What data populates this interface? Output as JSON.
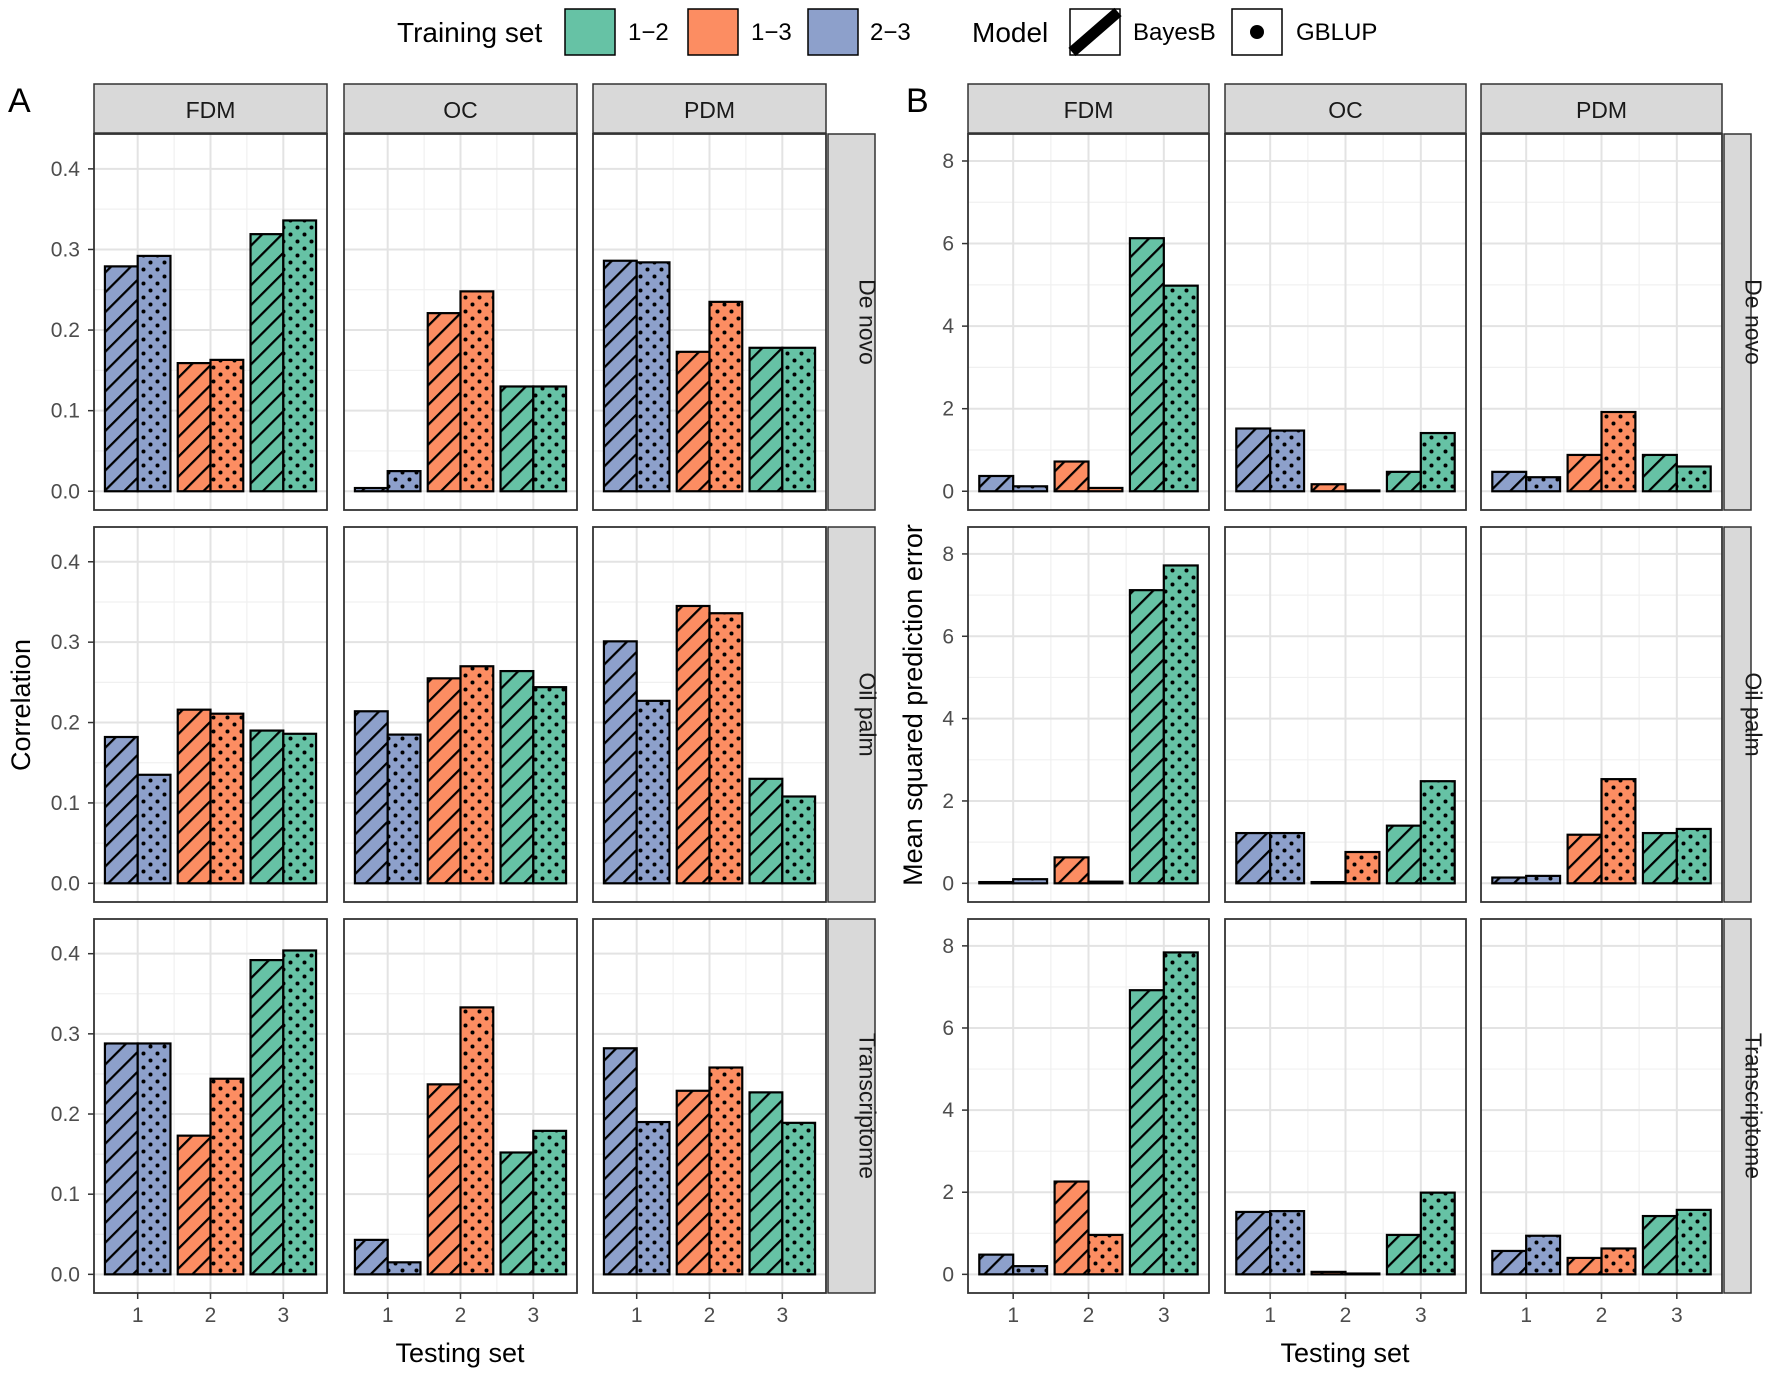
{
  "legend": {
    "training_title": "Training set",
    "training_items": [
      {
        "label": "1−2",
        "color": "#66C2A5"
      },
      {
        "label": "1−3",
        "color": "#FC8D62"
      },
      {
        "label": "2−3",
        "color": "#8DA0CB"
      }
    ],
    "model_title": "Model",
    "model_items": [
      {
        "label": "BayesB",
        "pattern": "stripe"
      },
      {
        "label": "GBLUP",
        "pattern": "dots"
      }
    ]
  },
  "chart_data": [
    {
      "type": "bar",
      "panel_label": "A",
      "xlabel": "Testing set",
      "ylabel": "Correlation",
      "ylim": [
        0,
        0.42
      ],
      "yticks": [
        0.0,
        0.1,
        0.2,
        0.3,
        0.4
      ],
      "ytick_labels": [
        "0.0",
        "0.1",
        "0.2",
        "0.3",
        "0.4"
      ],
      "columns": [
        "FDM",
        "OC",
        "PDM"
      ],
      "rows": [
        "De novo",
        "Oil palm",
        "Transcriptome"
      ],
      "categories": [
        "1",
        "2",
        "3"
      ],
      "category_training_set": [
        "2−3",
        "1−3",
        "1−2"
      ],
      "models": [
        "BayesB",
        "GBLUP"
      ],
      "values": {
        "De novo": {
          "FDM": [
            [
              0.279,
              0.292
            ],
            [
              0.159,
              0.163
            ],
            [
              0.319,
              0.336
            ]
          ],
          "OC": [
            [
              0.004,
              0.025
            ],
            [
              0.221,
              0.248
            ],
            [
              0.13,
              0.13
            ]
          ],
          "PDM": [
            [
              0.286,
              0.284
            ],
            [
              0.173,
              0.235
            ],
            [
              0.178,
              0.178
            ]
          ]
        },
        "Oil palm": {
          "FDM": [
            [
              0.182,
              0.135
            ],
            [
              0.216,
              0.211
            ],
            [
              0.19,
              0.186
            ]
          ],
          "OC": [
            [
              0.214,
              0.185
            ],
            [
              0.255,
              0.27
            ],
            [
              0.264,
              0.244
            ]
          ],
          "PDM": [
            [
              0.301,
              0.227
            ],
            [
              0.345,
              0.336
            ],
            [
              0.13,
              0.108
            ]
          ]
        },
        "Transcriptome": {
          "FDM": [
            [
              0.288,
              0.288
            ],
            [
              0.173,
              0.244
            ],
            [
              0.392,
              0.404
            ]
          ],
          "OC": [
            [
              0.043,
              0.015
            ],
            [
              0.237,
              0.333
            ],
            [
              0.152,
              0.179
            ]
          ],
          "PDM": [
            [
              0.282,
              0.19
            ],
            [
              0.229,
              0.258
            ],
            [
              0.227,
              0.189
            ]
          ]
        }
      }
    },
    {
      "type": "bar",
      "panel_label": "B",
      "xlabel": "Testing set",
      "ylabel": "Mean squared prediction error",
      "ylim": [
        0,
        8.2
      ],
      "yticks": [
        0,
        2,
        4,
        6,
        8
      ],
      "ytick_labels": [
        "0",
        "2",
        "4",
        "6",
        "8"
      ],
      "columns": [
        "FDM",
        "OC",
        "PDM"
      ],
      "rows": [
        "De novo",
        "Oil palm",
        "Transcriptome"
      ],
      "categories": [
        "1",
        "2",
        "3"
      ],
      "category_training_set": [
        "2−3",
        "1−3",
        "1−2"
      ],
      "models": [
        "BayesB",
        "GBLUP"
      ],
      "values": {
        "De novo": {
          "FDM": [
            [
              0.37,
              0.12
            ],
            [
              0.72,
              0.08
            ],
            [
              6.13,
              4.98
            ]
          ],
          "OC": [
            [
              1.52,
              1.47
            ],
            [
              0.17,
              0.02
            ],
            [
              0.47,
              1.41
            ]
          ],
          "PDM": [
            [
              0.47,
              0.34
            ],
            [
              0.88,
              1.92
            ],
            [
              0.88,
              0.6
            ]
          ]
        },
        "Oil palm": {
          "FDM": [
            [
              0.03,
              0.1
            ],
            [
              0.63,
              0.04
            ],
            [
              7.12,
              7.72
            ]
          ],
          "OC": [
            [
              1.22,
              1.22
            ],
            [
              0.03,
              0.76
            ],
            [
              1.4,
              2.48
            ]
          ],
          "PDM": [
            [
              0.14,
              0.18
            ],
            [
              1.18,
              2.53
            ],
            [
              1.22,
              1.32
            ]
          ]
        },
        "Transcriptome": {
          "FDM": [
            [
              0.48,
              0.2
            ],
            [
              2.26,
              0.96
            ],
            [
              6.92,
              7.84
            ]
          ],
          "OC": [
            [
              1.52,
              1.54
            ],
            [
              0.06,
              0.02
            ],
            [
              0.96,
              1.99
            ]
          ],
          "PDM": [
            [
              0.57,
              0.94
            ],
            [
              0.4,
              0.63
            ],
            [
              1.42,
              1.57
            ]
          ]
        }
      }
    }
  ]
}
